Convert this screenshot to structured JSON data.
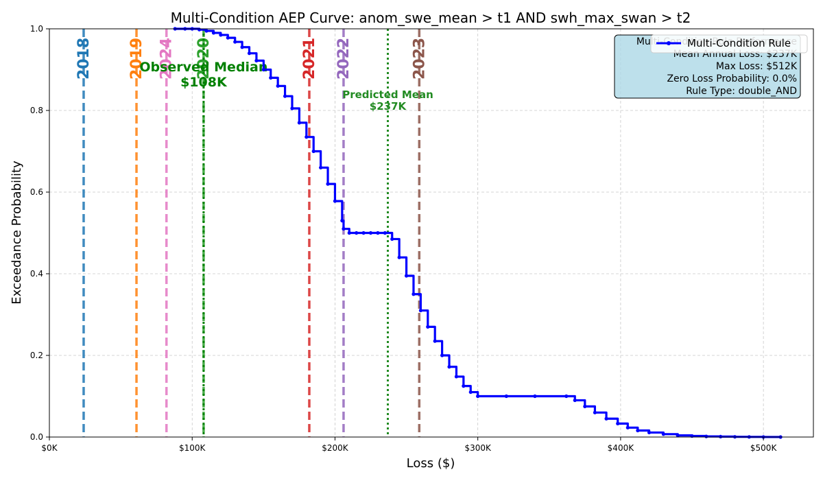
{
  "chart_data": {
    "type": "line",
    "title": "Multi-Condition AEP Curve: anom_swe_mean > t1 AND swh_max_swan > t2",
    "xlabel": "Loss ($)",
    "ylabel": "Exceedance Probability",
    "xlim": [
      0,
      535000
    ],
    "ylim": [
      0,
      1
    ],
    "grid": true,
    "x_ticks": [
      {
        "value": 0,
        "label": "$0K"
      },
      {
        "value": 100000,
        "label": "$100K"
      },
      {
        "value": 200000,
        "label": "$200K"
      },
      {
        "value": 300000,
        "label": "$300K"
      },
      {
        "value": 400000,
        "label": "$400K"
      },
      {
        "value": 500000,
        "label": "$500K"
      }
    ],
    "y_ticks": [
      {
        "value": 0.0,
        "label": "0.0"
      },
      {
        "value": 0.2,
        "label": "0.2"
      },
      {
        "value": 0.4,
        "label": "0.4"
      },
      {
        "value": 0.6,
        "label": "0.6"
      },
      {
        "value": 0.8,
        "label": "0.8"
      },
      {
        "value": 1.0,
        "label": "1.0"
      }
    ],
    "series": [
      {
        "name": "Multi-Condition Rule",
        "color": "#0000ff",
        "x": [
          88000,
          95000,
          100000,
          105000,
          110000,
          115000,
          120000,
          125000,
          130000,
          135000,
          140000,
          145000,
          150000,
          155000,
          160000,
          165000,
          170000,
          175000,
          180000,
          185000,
          190000,
          195000,
          200000,
          205000,
          206000,
          210000,
          215000,
          220000,
          225000,
          230000,
          235000,
          240000,
          245000,
          250000,
          255000,
          260000,
          265000,
          270000,
          275000,
          280000,
          285000,
          290000,
          295000,
          300000,
          320000,
          340000,
          362000,
          368000,
          375000,
          382000,
          390000,
          398000,
          405000,
          412000,
          420000,
          430000,
          440000,
          450000,
          460000,
          470000,
          480000,
          490000,
          500000,
          512000
        ],
        "y": [
          1.0,
          1.0,
          1.0,
          0.998,
          0.995,
          0.99,
          0.985,
          0.978,
          0.968,
          0.955,
          0.94,
          0.922,
          0.9,
          0.88,
          0.86,
          0.835,
          0.805,
          0.77,
          0.735,
          0.7,
          0.66,
          0.62,
          0.578,
          0.53,
          0.51,
          0.5,
          0.5,
          0.5,
          0.5,
          0.5,
          0.5,
          0.485,
          0.44,
          0.395,
          0.35,
          0.31,
          0.27,
          0.235,
          0.2,
          0.172,
          0.148,
          0.125,
          0.11,
          0.1,
          0.1,
          0.1,
          0.1,
          0.09,
          0.075,
          0.06,
          0.045,
          0.033,
          0.023,
          0.016,
          0.011,
          0.007,
          0.004,
          0.0025,
          0.0015,
          0.001,
          0.0005,
          0.0003,
          0.0001,
          0.0
        ]
      }
    ],
    "year_lines": [
      {
        "label": "2018",
        "x": 24000,
        "color": "#1f77b4"
      },
      {
        "label": "2019",
        "x": 61000,
        "color": "#ff7f0e"
      },
      {
        "label": "2024",
        "x": 82000,
        "color": "#e377c2"
      },
      {
        "label": "2020",
        "x": 108000,
        "color": "#2ca02c"
      },
      {
        "label": "2021",
        "x": 182000,
        "color": "#d62728"
      },
      {
        "label": "2022",
        "x": 206000,
        "color": "#9467bd"
      },
      {
        "label": "2023",
        "x": 259000,
        "color": "#8c564b"
      }
    ],
    "reference_lines": [
      {
        "label": "Observed Median\n$108K",
        "x": 108000,
        "color": "#008000"
      },
      {
        "label": "Predicted Mean\n$237K",
        "x": 237000,
        "color": "#228b22"
      }
    ],
    "legend": {
      "placement": "top-right",
      "entries": [
        "Multi-Condition Rule"
      ]
    },
    "info_box": {
      "title": "Multi-Condition Rule Performance",
      "lines": [
        "Mean Annual Loss: $237K",
        "Max Loss: $512K",
        "Zero Loss Probability: 0.0%",
        "Rule Type: double_AND"
      ]
    }
  }
}
